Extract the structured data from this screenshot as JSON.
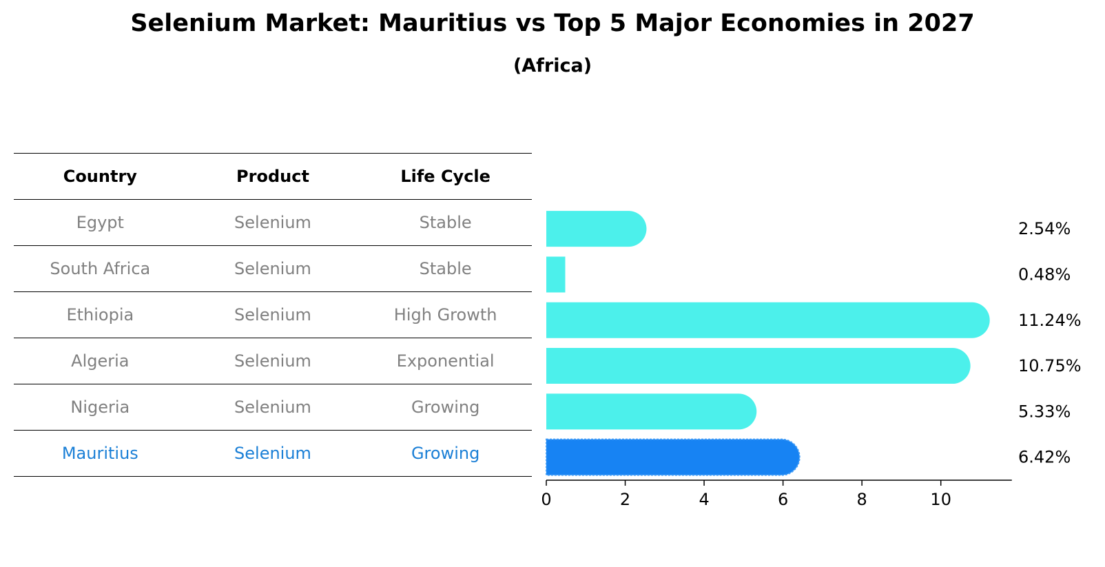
{
  "header": {
    "title": "Selenium Market: Mauritius vs Top 5 Major Economies in 2027",
    "subtitle": "(Africa)"
  },
  "table": {
    "columns": [
      "Country",
      "Product",
      "Life Cycle"
    ],
    "rows": [
      {
        "country": "Egypt",
        "product": "Selenium",
        "life_cycle": "Stable"
      },
      {
        "country": "South Africa",
        "product": "Selenium",
        "life_cycle": "Stable"
      },
      {
        "country": "Ethiopia",
        "product": "Selenium",
        "life_cycle": "High Growth"
      },
      {
        "country": "Algeria",
        "product": "Selenium",
        "life_cycle": "Exponential"
      },
      {
        "country": "Nigeria",
        "product": "Selenium",
        "life_cycle": "Growing"
      },
      {
        "country": "Mauritius",
        "product": "Selenium",
        "life_cycle": "Growing"
      }
    ]
  },
  "chart_data": {
    "type": "bar",
    "orientation": "horizontal",
    "title": "Selenium Market: Mauritius vs Top 5 Major Economies in 2027",
    "subtitle": "(Africa)",
    "categories": [
      "Egypt",
      "South Africa",
      "Ethiopia",
      "Algeria",
      "Nigeria",
      "Mauritius"
    ],
    "values": [
      2.54,
      0.48,
      11.24,
      10.75,
      5.33,
      6.42
    ],
    "value_labels": [
      "2.54%",
      "0.48%",
      "11.24%",
      "10.75%",
      "5.33%",
      "6.42%"
    ],
    "highlight": "Mauritius",
    "xlim": [
      0,
      11.8
    ],
    "xticks": [
      0,
      2,
      4,
      6,
      8,
      10
    ],
    "xlabel": "",
    "ylabel": "",
    "colors": {
      "default": "#4cf0eb",
      "highlight": "#1783f3",
      "text_default": "#808080",
      "text_highlight": "#1a7fd6"
    }
  }
}
